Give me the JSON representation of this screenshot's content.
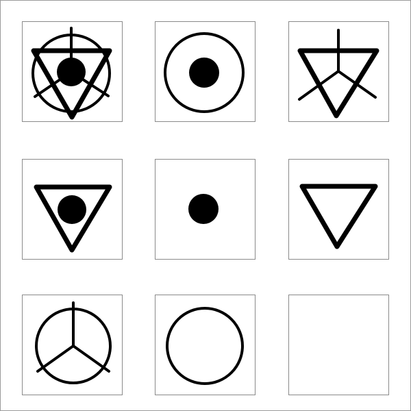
{
  "puzzle": {
    "grid": [
      [
        "circle-with-triangle-dot-and-y-lines",
        "circle-with-dot",
        "triangle-with-y-lines"
      ],
      [
        "triangle-with-dot",
        "dot",
        "triangle"
      ],
      [
        "circle-with-y-lines",
        "circle",
        "missing"
      ]
    ],
    "colors": {
      "ink": "#000000",
      "cell_border": "#8a8a8a",
      "frame_border": "#9a9a9a",
      "background": "#ffffff"
    }
  }
}
